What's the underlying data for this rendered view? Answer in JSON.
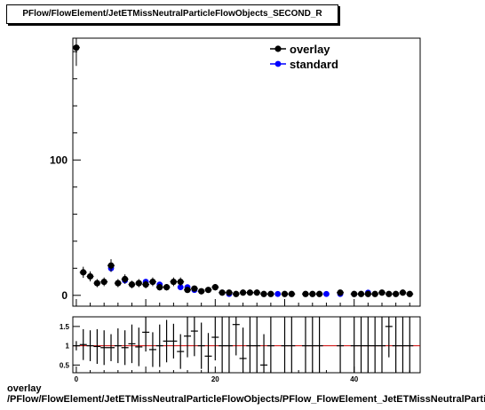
{
  "title": "PFlow/FlowElement/JetETMissNeutralParticleFlowObjects_SECOND_R",
  "footer": {
    "line1": "overlay",
    "line2": "/PFlow/FlowElement/JetETMissNeutralParticleFlowObjects/PFlow_FlowElement_JetETMissNeutralParticleFlowObjects_SECOND_R"
  },
  "colors": {
    "overlay": "#000000",
    "standard": "#0000ff",
    "ratio_line": "#cc0000"
  },
  "chart_data": [
    {
      "type": "scatter",
      "title": "PFlow/FlowElement/JetETMissNeutralParticleFlowObjects_SECOND_R",
      "xlim": [
        -0.5,
        49.5
      ],
      "ylim": [
        -8,
        190
      ],
      "y_ticks": [
        0,
        100
      ],
      "x_ticks": [],
      "legend": "top-right",
      "series": [
        {
          "name": "overlay",
          "x": [
            0,
            1,
            2,
            3,
            4,
            5,
            6,
            7,
            8,
            9,
            10,
            11,
            12,
            13,
            14,
            15,
            16,
            17,
            18,
            19,
            20,
            21,
            22,
            23,
            24,
            25,
            26,
            27,
            28,
            30,
            31,
            33,
            34,
            35,
            38,
            40,
            41,
            42,
            43,
            44,
            45,
            46,
            47,
            48,
            50
          ],
          "y": [
            183,
            17,
            14,
            9,
            10,
            22,
            9,
            12,
            8,
            9,
            8,
            10,
            6,
            6,
            10,
            10,
            4,
            5,
            3,
            4,
            6,
            2,
            2,
            1,
            2,
            2,
            2,
            1,
            1,
            1,
            1,
            1,
            1,
            1,
            2,
            1,
            1,
            1,
            1,
            2,
            1,
            1,
            2,
            1,
            1
          ],
          "yerr": [
            13.5,
            4.1,
            3.7,
            3.0,
            3.2,
            4.7,
            3.0,
            3.5,
            2.8,
            3.0,
            2.8,
            3.2,
            2.4,
            2.4,
            3.2,
            3.2,
            2.0,
            2.2,
            1.7,
            2.0,
            2.4,
            1.4,
            1.4,
            1.0,
            1.4,
            1.4,
            1.4,
            1.0,
            1.0,
            1.0,
            1.0,
            1.0,
            1.0,
            1.0,
            1.4,
            1.0,
            1.0,
            1.0,
            1.0,
            1.4,
            1.0,
            1.0,
            1.4,
            1.0,
            1.0
          ]
        },
        {
          "name": "standard",
          "x": [
            5,
            7,
            10,
            12,
            15,
            16,
            17,
            21,
            22,
            28,
            29,
            36,
            38,
            40,
            42
          ],
          "y": [
            20,
            11,
            10,
            8,
            6,
            6,
            4,
            2,
            1,
            1,
            1,
            1,
            1,
            1,
            2
          ]
        }
      ]
    },
    {
      "type": "scatter",
      "title": "",
      "xlim": [
        -0.5,
        49.5
      ],
      "ylim": [
        0.3,
        1.75
      ],
      "y_ticks": [
        0.5,
        1,
        1.5
      ],
      "x_ticks": [
        0,
        20,
        40
      ],
      "reference_line": 1,
      "series": [
        {
          "name": "",
          "x": [
            0,
            1,
            2,
            3,
            4,
            5,
            6,
            7,
            8,
            9,
            10,
            11,
            12,
            13,
            14,
            15,
            16,
            17,
            18,
            19,
            20,
            21,
            22,
            23,
            24,
            25,
            26,
            27,
            28,
            30,
            31,
            33,
            34,
            35,
            38,
            40,
            41,
            42,
            43,
            44,
            45,
            46,
            47,
            48,
            50
          ],
          "y": [
            1.0,
            1.03,
            1.0,
            0.98,
            0.95,
            0.95,
            1.0,
            0.95,
            1.05,
            0.97,
            1.35,
            0.9,
            1.0,
            1.12,
            1.12,
            0.85,
            1.25,
            1.38,
            1.0,
            0.73,
            1.22,
            1.0,
            1.0,
            1.55,
            0.67,
            1.0,
            1.0,
            0.5,
            1.0,
            1.0,
            1.0,
            1.0,
            1.0,
            1.0,
            1.0,
            1.0,
            1.0,
            1.0,
            1.0,
            1.0,
            1.5,
            1.0,
            1.0,
            1.0,
            1.0
          ],
          "yerr": [
            0.12,
            0.4,
            0.4,
            0.45,
            0.45,
            0.35,
            0.45,
            0.45,
            0.5,
            0.5,
            0.5,
            0.45,
            0.55,
            0.55,
            0.45,
            0.45,
            0.55,
            0.65,
            0.6,
            0.6,
            0.6,
            0.8,
            0.8,
            0.8,
            0.8,
            0.8,
            0.8,
            0.8,
            0.8,
            0.8,
            0.8,
            0.8,
            0.8,
            0.8,
            0.8,
            0.8,
            0.8,
            0.8,
            0.8,
            0.8,
            0.8,
            0.8,
            0.8,
            0.8,
            0.8
          ]
        }
      ]
    }
  ]
}
